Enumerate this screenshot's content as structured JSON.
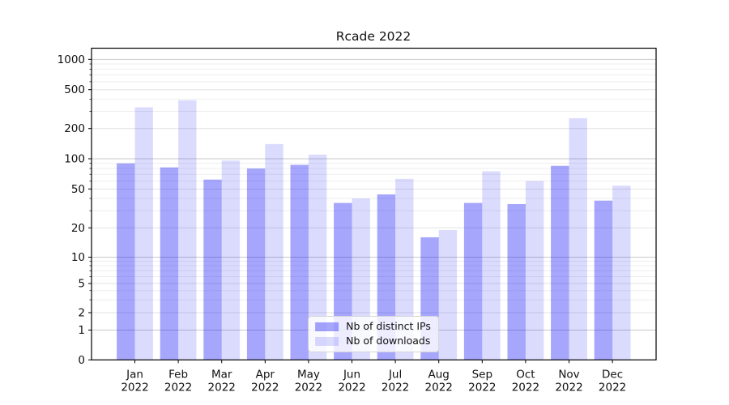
{
  "chart_data": {
    "type": "bar",
    "title": "Rcade 2022",
    "categories": [
      {
        "month": "Jan",
        "year": "2022"
      },
      {
        "month": "Feb",
        "year": "2022"
      },
      {
        "month": "Mar",
        "year": "2022"
      },
      {
        "month": "Apr",
        "year": "2022"
      },
      {
        "month": "May",
        "year": "2022"
      },
      {
        "month": "Jun",
        "year": "2022"
      },
      {
        "month": "Jul",
        "year": "2022"
      },
      {
        "month": "Aug",
        "year": "2022"
      },
      {
        "month": "Sep",
        "year": "2022"
      },
      {
        "month": "Oct",
        "year": "2022"
      },
      {
        "month": "Nov",
        "year": "2022"
      },
      {
        "month": "Dec",
        "year": "2022"
      }
    ],
    "series": [
      {
        "name": "Nb of distinct IPs",
        "color": "#0000f5",
        "opacity": 0.35,
        "values": [
          90,
          82,
          62,
          80,
          87,
          36,
          44,
          16,
          36,
          35,
          85,
          38
        ]
      },
      {
        "name": "Nb of downloads",
        "color": "#0000f5",
        "opacity": 0.14,
        "values": [
          330,
          390,
          96,
          140,
          110,
          40,
          63,
          19,
          75,
          60,
          255,
          54
        ]
      }
    ],
    "yticks": [
      1000,
      500,
      200,
      100,
      50,
      20,
      10,
      5,
      2,
      1,
      0
    ],
    "yscale": "asinh",
    "ylim": [
      0,
      1300
    ],
    "grid": true,
    "legend_position": "lower center",
    "colors": {
      "decade_gridline": "#c9c9c9",
      "major_gridline": "#e2e2e2",
      "minor_gridline": "#eeeeee",
      "spine": "#000000",
      "text": "#111111"
    }
  }
}
